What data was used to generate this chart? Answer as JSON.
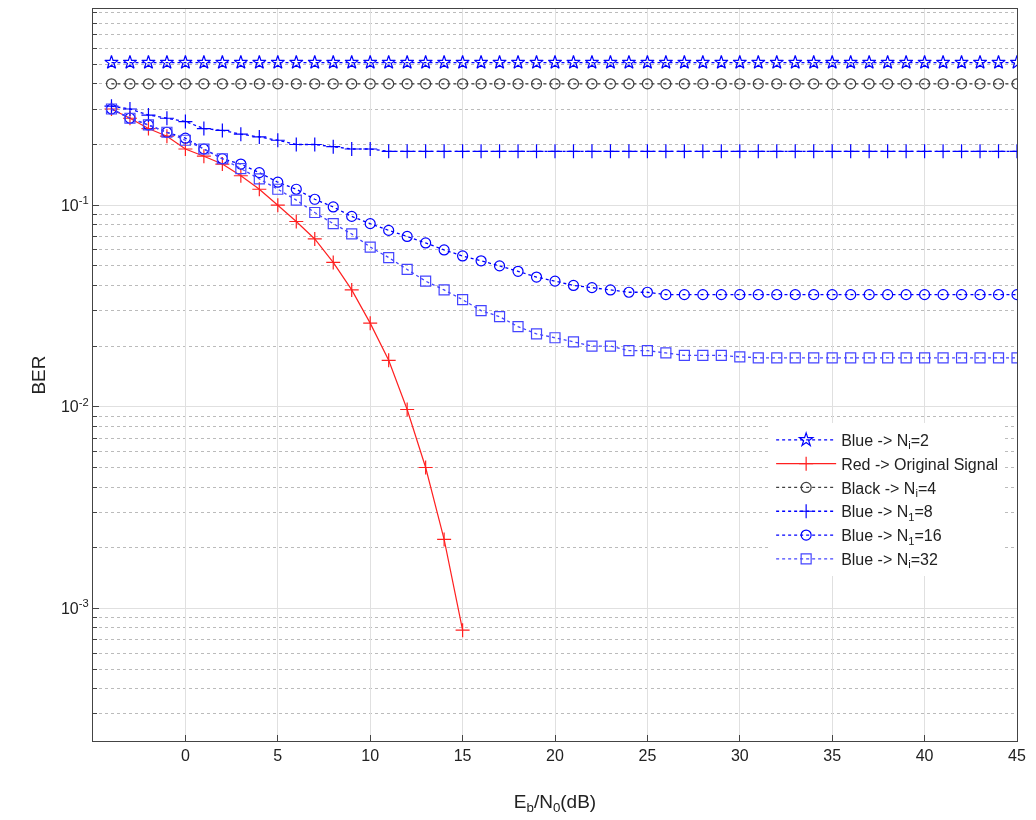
{
  "chart_data": {
    "type": "line",
    "xlabel": "E$_{b}$/N$_{0}$(dB)",
    "ylabel": "BER",
    "log": "y",
    "grid": true,
    "legend": "right",
    "x": [
      -4,
      -3,
      -2,
      -1,
      0,
      1,
      2,
      3,
      4,
      5,
      6,
      7,
      8,
      9,
      10,
      11,
      12,
      13,
      14,
      15,
      16,
      17,
      18,
      19,
      20,
      21,
      22,
      23,
      24,
      25,
      26,
      27,
      28,
      29,
      30,
      31,
      32,
      33,
      34,
      35,
      36,
      37,
      38,
      39,
      40,
      41,
      42,
      43,
      44,
      45
    ],
    "xlim": [
      -5,
      45
    ],
    "xticks": [
      0,
      5,
      10,
      15,
      20,
      25,
      30,
      35,
      40,
      45
    ],
    "ylim": [
      0.00022,
      0.94
    ],
    "yticks": [
      {
        "value": 0.001,
        "label": "10$^{-3}$"
      },
      {
        "value": 0.01,
        "label": "10$^{-2}$"
      },
      {
        "value": 0.1,
        "label": "10$^{-1}$"
      }
    ],
    "series": [
      {
        "name": "Blue -> N$_{i}$=2",
        "color": "#0000ff",
        "marker": "star",
        "line_style": "dotted",
        "values": [
          0.51,
          0.51,
          0.51,
          0.51,
          0.51,
          0.51,
          0.51,
          0.51,
          0.51,
          0.51,
          0.51,
          0.51,
          0.51,
          0.51,
          0.51,
          0.51,
          0.51,
          0.51,
          0.51,
          0.51,
          0.51,
          0.51,
          0.51,
          0.51,
          0.51,
          0.51,
          0.51,
          0.51,
          0.51,
          0.51,
          0.51,
          0.51,
          0.51,
          0.51,
          0.51,
          0.51,
          0.51,
          0.51,
          0.51,
          0.51,
          0.51,
          0.51,
          0.51,
          0.51,
          0.51,
          0.51,
          0.51,
          0.51,
          0.51,
          0.51
        ]
      },
      {
        "name": "Red -> Original Signal",
        "color": "#ff2020",
        "marker": "cross",
        "line_style": "solid",
        "x": [
          -4,
          -3,
          -2,
          -1,
          0,
          1,
          2,
          3,
          4,
          5,
          6,
          7,
          8,
          9,
          10,
          11,
          12,
          13,
          14,
          15
        ],
        "values": [
          0.3,
          0.27,
          0.24,
          0.22,
          0.19,
          0.175,
          0.16,
          0.14,
          0.12,
          0.1,
          0.083,
          0.068,
          0.052,
          0.038,
          0.026,
          0.017,
          0.0097,
          0.005,
          0.0022,
          0.00078
        ]
      },
      {
        "name": "Black -> N$_{i}$=4",
        "color": "#404040",
        "marker": "circle",
        "line_style": "dotted",
        "values": [
          0.4,
          0.4,
          0.4,
          0.4,
          0.4,
          0.4,
          0.4,
          0.4,
          0.4,
          0.4,
          0.4,
          0.4,
          0.4,
          0.4,
          0.4,
          0.4,
          0.4,
          0.4,
          0.4,
          0.4,
          0.4,
          0.4,
          0.4,
          0.4,
          0.4,
          0.4,
          0.4,
          0.4,
          0.4,
          0.4,
          0.4,
          0.4,
          0.4,
          0.4,
          0.4,
          0.4,
          0.4,
          0.4,
          0.4,
          0.4,
          0.4,
          0.4,
          0.4,
          0.4,
          0.4,
          0.4,
          0.4,
          0.4,
          0.4,
          0.4
        ]
      },
      {
        "name": "Blue -> N$_{1}$=8",
        "color": "#0000ff",
        "marker": "cross",
        "line_style": "dotted",
        "values": [
          0.31,
          0.3,
          0.28,
          0.27,
          0.26,
          0.24,
          0.235,
          0.225,
          0.218,
          0.21,
          0.2,
          0.2,
          0.195,
          0.19,
          0.19,
          0.185,
          0.185,
          0.185,
          0.185,
          0.185,
          0.185,
          0.185,
          0.185,
          0.185,
          0.185,
          0.185,
          0.185,
          0.185,
          0.185,
          0.185,
          0.185,
          0.185,
          0.185,
          0.185,
          0.185,
          0.185,
          0.185,
          0.185,
          0.185,
          0.185,
          0.185,
          0.185,
          0.185,
          0.185,
          0.185,
          0.185,
          0.185,
          0.185,
          0.185,
          0.185
        ]
      },
      {
        "name": "Blue -> N$_{1}$=16",
        "color": "#0000ff",
        "marker": "circle",
        "line_style": "dotted",
        "values": [
          0.3,
          0.27,
          0.25,
          0.23,
          0.215,
          0.19,
          0.17,
          0.16,
          0.145,
          0.13,
          0.12,
          0.107,
          0.098,
          0.088,
          0.081,
          0.075,
          0.07,
          0.065,
          0.06,
          0.056,
          0.053,
          0.05,
          0.047,
          0.044,
          0.042,
          0.04,
          0.039,
          0.038,
          0.037,
          0.037,
          0.036,
          0.036,
          0.036,
          0.036,
          0.036,
          0.036,
          0.036,
          0.036,
          0.036,
          0.036,
          0.036,
          0.036,
          0.036,
          0.036,
          0.036,
          0.036,
          0.036,
          0.036,
          0.036,
          0.036
        ]
      },
      {
        "name": "Blue -> N$_{i}$=32",
        "color": "#4444ff",
        "marker": "square",
        "line_style": "dotted",
        "values": [
          0.3,
          0.27,
          0.25,
          0.23,
          0.21,
          0.19,
          0.17,
          0.152,
          0.135,
          0.12,
          0.106,
          0.092,
          0.081,
          0.072,
          0.062,
          0.055,
          0.048,
          0.042,
          0.038,
          0.034,
          0.03,
          0.028,
          0.025,
          0.023,
          0.022,
          0.021,
          0.02,
          0.02,
          0.019,
          0.019,
          0.0185,
          0.018,
          0.018,
          0.018,
          0.0177,
          0.0175,
          0.0175,
          0.0175,
          0.0175,
          0.0175,
          0.0175,
          0.0175,
          0.0175,
          0.0175,
          0.0175,
          0.0175,
          0.0175,
          0.0175,
          0.0175,
          0.0175
        ]
      }
    ]
  }
}
